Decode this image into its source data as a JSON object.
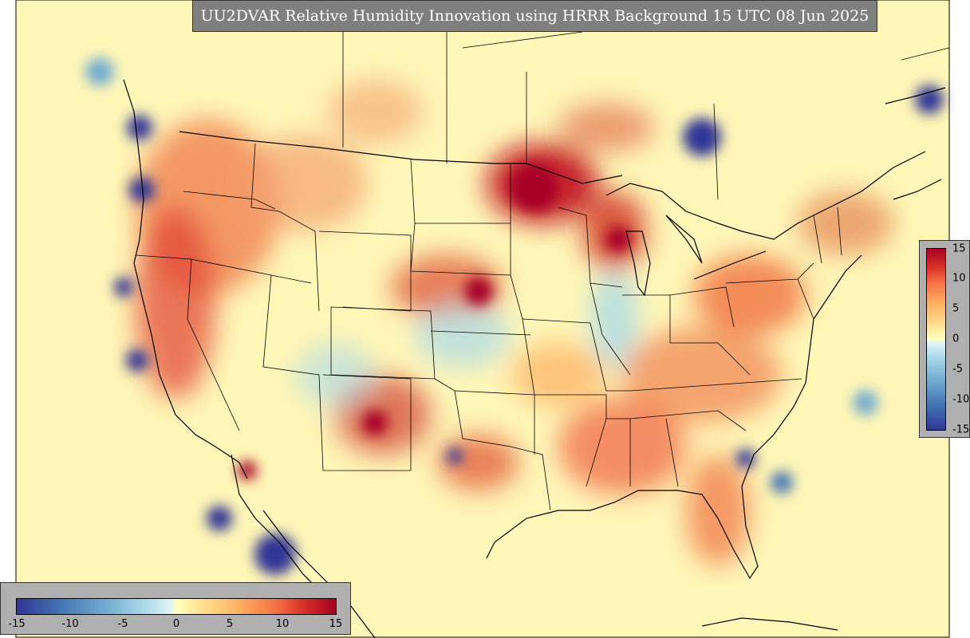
{
  "title": "UU2DVAR Relative Humidity Innovation using HRRR Background 15 UTC 08 Jun 2025",
  "colorbar": {
    "ticks": [
      "-15",
      "-10",
      "-5",
      "0",
      "5",
      "10",
      "15"
    ],
    "vertical_ticks": [
      "15",
      "10",
      "5",
      "0",
      "-5",
      "-10",
      "-15"
    ],
    "range": [
      -15,
      15
    ],
    "colors": [
      "#313695",
      "#4575b4",
      "#74add1",
      "#abd9e9",
      "#e0f3f8",
      "#ffffbf",
      "#fee090",
      "#fdae61",
      "#f46d43",
      "#d73027",
      "#a50026"
    ]
  },
  "map": {
    "background_color": "#ffffbf",
    "boundary_color": "#000000"
  }
}
